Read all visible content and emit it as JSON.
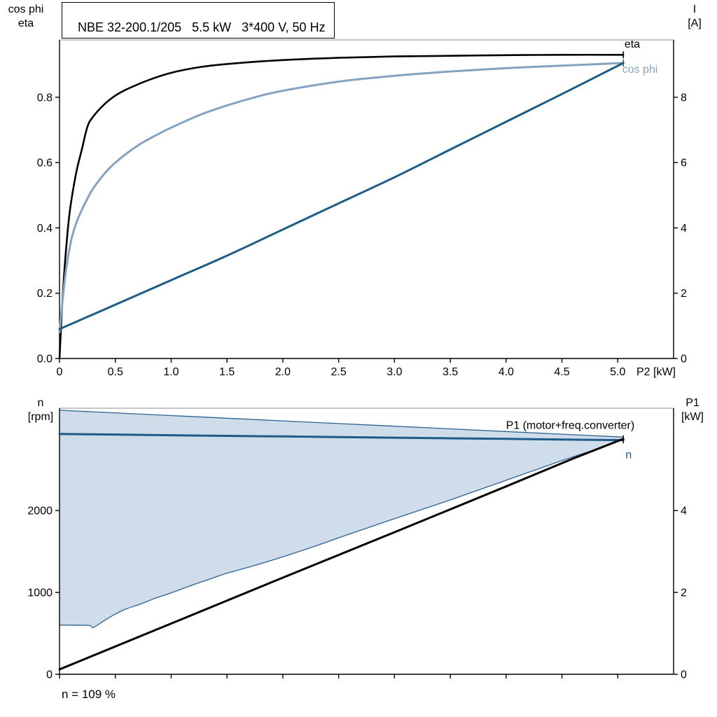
{
  "chart_data": [
    {
      "name": "efficiency-current-chart",
      "type": "line",
      "title": "NBE 32-200.1/205   5.5 kW   3*400 V, 50 Hz",
      "xlabel": "P2 [kW]",
      "x": {
        "min": 0,
        "max": 5.5,
        "ticks": [
          0,
          0.5,
          1.0,
          1.5,
          2.0,
          2.5,
          3.0,
          3.5,
          4.0,
          4.5,
          5.0
        ],
        "tick_labels": [
          "0",
          "0.5",
          "1.0",
          "1.5",
          "2.0",
          "2.5",
          "3.0",
          "3.5",
          "4.0",
          "4.5",
          "5.0"
        ]
      },
      "y_left": {
        "label_lines": [
          "cos phi",
          "eta"
        ],
        "min": 0,
        "max": 0.9757,
        "ticks": [
          0.0,
          0.2,
          0.4,
          0.6,
          0.8
        ],
        "tick_labels": [
          "0.0",
          "0.2",
          "0.4",
          "0.6",
          "0.8"
        ]
      },
      "y_right": {
        "label_lines": [
          "I",
          "[A]"
        ],
        "min": 0,
        "max": 9.757,
        "ticks": [
          0,
          2,
          4,
          6,
          8
        ],
        "tick_labels": [
          "0",
          "2",
          "4",
          "6",
          "8"
        ]
      },
      "series": [
        {
          "name": "eta",
          "axis": "left",
          "color": "#000000",
          "width": 2.6,
          "smooth": true,
          "end_tick": true,
          "points": [
            [
              0,
              0
            ],
            [
              0.03,
              0.2
            ],
            [
              0.07,
              0.38
            ],
            [
              0.1,
              0.47
            ],
            [
              0.15,
              0.57
            ],
            [
              0.2,
              0.64
            ],
            [
              0.25,
              0.71
            ],
            [
              0.3,
              0.74
            ],
            [
              0.4,
              0.778
            ],
            [
              0.5,
              0.805
            ],
            [
              0.6,
              0.824
            ],
            [
              0.8,
              0.853
            ],
            [
              1.0,
              0.875
            ],
            [
              1.25,
              0.892
            ],
            [
              1.5,
              0.902
            ],
            [
              2.0,
              0.914
            ],
            [
              2.5,
              0.921
            ],
            [
              3.0,
              0.925
            ],
            [
              3.5,
              0.927
            ],
            [
              4.0,
              0.929
            ],
            [
              4.5,
              0.93
            ],
            [
              5.05,
              0.93
            ]
          ]
        },
        {
          "name": "cos-phi",
          "axis": "left",
          "color": "#84a2c2",
          "width": 3,
          "smooth": true,
          "end_tick": false,
          "points": [
            [
              0,
              0.08
            ],
            [
              0.05,
              0.25
            ],
            [
              0.1,
              0.355
            ],
            [
              0.15,
              0.415
            ],
            [
              0.2,
              0.455
            ],
            [
              0.25,
              0.49
            ],
            [
              0.3,
              0.52
            ],
            [
              0.4,
              0.565
            ],
            [
              0.5,
              0.6
            ],
            [
              0.7,
              0.652
            ],
            [
              0.9,
              0.69
            ],
            [
              1.0,
              0.707
            ],
            [
              1.25,
              0.745
            ],
            [
              1.5,
              0.775
            ],
            [
              1.75,
              0.8
            ],
            [
              2.0,
              0.82
            ],
            [
              2.5,
              0.848
            ],
            [
              3.0,
              0.866
            ],
            [
              3.5,
              0.879
            ],
            [
              4.0,
              0.889
            ],
            [
              4.5,
              0.897
            ],
            [
              5.05,
              0.905
            ]
          ]
        },
        {
          "name": "current-I",
          "axis": "right",
          "color": "#1d5b88",
          "width": 3,
          "smooth": true,
          "end_tick": true,
          "points": [
            [
              0,
              0.9
            ],
            [
              0.5,
              1.65
            ],
            [
              1.0,
              2.4
            ],
            [
              1.5,
              3.15
            ],
            [
              2.0,
              3.95
            ],
            [
              2.5,
              4.75
            ],
            [
              3.0,
              5.55
            ],
            [
              3.5,
              6.4
            ],
            [
              4.0,
              7.25
            ],
            [
              4.5,
              8.1
            ],
            [
              5.05,
              9.05
            ]
          ]
        }
      ],
      "annotations": [
        {
          "text": "eta",
          "x": 5.06,
          "y": 0.963,
          "color": "#000000",
          "anchor": "start"
        },
        {
          "text": "cos phi",
          "x": 5.04,
          "y": 0.886,
          "color": "#84a2c2",
          "anchor": "start"
        }
      ]
    },
    {
      "name": "speed-power-chart",
      "type": "line",
      "title": "",
      "xlabel": "",
      "footnote": "n = 109 %",
      "x": {
        "min": 0,
        "max": 5.5,
        "ticks": [
          0,
          0.5,
          1.0,
          1.5,
          2.0,
          2.5,
          3.0,
          3.5,
          4.0,
          4.5,
          5.0
        ],
        "tick_labels": []
      },
      "y_left": {
        "label_lines": [
          "n",
          "[rpm]"
        ],
        "min": 0,
        "max": 3250,
        "ticks": [
          0,
          1000,
          2000
        ],
        "tick_labels": [
          "0",
          "1000",
          "2000"
        ]
      },
      "y_right": {
        "label_lines": [
          "P1",
          "[kW]"
        ],
        "min": 0,
        "max": 6.5,
        "ticks": [
          0,
          2,
          4
        ],
        "tick_labels": [
          "0",
          "2",
          "4"
        ]
      },
      "band": {
        "name": "speed-control-range",
        "fill": "#cfdce9",
        "edge": "#2e6293",
        "upper": [
          [
            0,
            3225
          ],
          [
            1,
            3160
          ],
          [
            2,
            3095
          ],
          [
            3,
            3030
          ],
          [
            4,
            2965
          ],
          [
            4.5,
            2933
          ],
          [
            5.05,
            2898
          ]
        ],
        "lower": [
          [
            0,
            600
          ],
          [
            0.26,
            597
          ],
          [
            0.3,
            570
          ],
          [
            0.4,
            655
          ],
          [
            0.5,
            735
          ],
          [
            0.6,
            800
          ],
          [
            0.72,
            855
          ],
          [
            0.85,
            925
          ],
          [
            1.0,
            995
          ],
          [
            1.2,
            1095
          ],
          [
            1.35,
            1165
          ],
          [
            1.5,
            1235
          ],
          [
            1.7,
            1310
          ],
          [
            2.0,
            1435
          ],
          [
            2.3,
            1570
          ],
          [
            2.6,
            1715
          ],
          [
            3.0,
            1900
          ],
          [
            3.5,
            2130
          ],
          [
            4.0,
            2370
          ],
          [
            4.5,
            2610
          ],
          [
            4.8,
            2748
          ],
          [
            5.05,
            2880
          ]
        ]
      },
      "series": [
        {
          "name": "speed-n",
          "axis": "left",
          "color": "#1d5b88",
          "width": 3,
          "smooth": false,
          "end_tick": true,
          "points": [
            [
              0,
              2935
            ],
            [
              0.5,
              2928
            ],
            [
              1,
              2920
            ],
            [
              1.5,
              2912
            ],
            [
              2,
              2905
            ],
            [
              2.5,
              2897
            ],
            [
              3,
              2890
            ],
            [
              3.5,
              2882
            ],
            [
              4,
              2875
            ],
            [
              4.5,
              2868
            ],
            [
              5.05,
              2860
            ]
          ]
        },
        {
          "name": "input-power-P1",
          "axis": "right",
          "color": "#000000",
          "width": 3,
          "smooth": false,
          "end_tick": true,
          "points": [
            [
              0,
              0.12
            ],
            [
              1,
              1.24
            ],
            [
              2,
              2.36
            ],
            [
              3,
              3.47
            ],
            [
              4,
              4.59
            ],
            [
              4.6,
              5.27
            ],
            [
              5.05,
              5.75
            ]
          ]
        }
      ],
      "annotations": [
        {
          "text": "P1 (motor+freq.converter)",
          "x": 5.15,
          "y": 3040,
          "color": "#000000",
          "anchor": "end"
        },
        {
          "text": "n",
          "x": 5.07,
          "y": 2680,
          "color": "#1d5b88",
          "anchor": "start"
        }
      ]
    }
  ],
  "style": {
    "frame_color": "#8c8c8c",
    "axis_color": "#000000",
    "tick_label_size": 16,
    "annotation_size": 16
  }
}
